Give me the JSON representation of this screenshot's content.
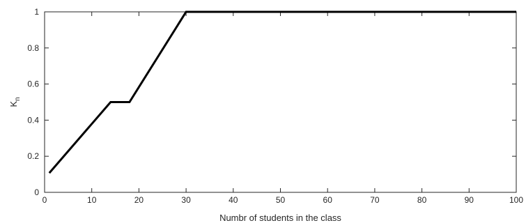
{
  "chart_data": {
    "type": "line",
    "title": "",
    "xlabel": "Numbr of students in the class",
    "ylabel": "K",
    "ylabel_subscript": "n",
    "xlim": [
      0,
      100
    ],
    "ylim": [
      0,
      1
    ],
    "x_ticks": [
      0,
      10,
      20,
      30,
      40,
      50,
      60,
      70,
      80,
      90,
      100
    ],
    "y_ticks": [
      0,
      0.2,
      0.4,
      0.6,
      0.8,
      1
    ],
    "x_tick_labels": [
      "0",
      "10",
      "20",
      "30",
      "40",
      "50",
      "60",
      "70",
      "80",
      "90",
      "100"
    ],
    "y_tick_labels": [
      "0",
      "0.2",
      "0.4",
      "0.6",
      "0.8",
      "1"
    ],
    "grid": false,
    "box": true,
    "series": [
      {
        "color": "#000000",
        "x": [
          1,
          14,
          18,
          30,
          100
        ],
        "y": [
          0.107,
          0.5,
          0.5,
          1,
          1
        ]
      }
    ]
  }
}
